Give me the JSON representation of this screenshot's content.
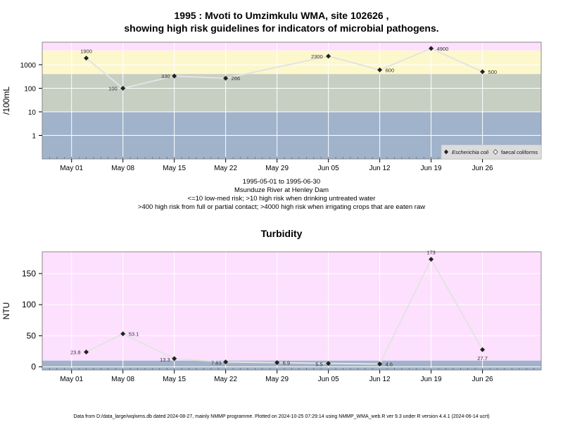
{
  "titles": {
    "main_line1": "1995 : Mvoti to Umzimkulu WMA, site 102626 ,",
    "main_line2": "showing high risk guidelines for indicators of microbial pathogens.",
    "turbidity": "Turbidity"
  },
  "caption": {
    "line1": "1995-05-01 to 1995-06-30",
    "line2": "Msunduze River at Henley Dam",
    "line3": "<=10 low-med risk; >10 high risk when drinking untreated water",
    "line4": ">400 high risk from full or partial contact; >4000 high risk when irrigating crops that are eaten raw"
  },
  "footer": "Data from D:/data_large/wq/wms.db dated 2024-08-27, mainly NMMP programme. Plotted on 2024-10-25 07:29:14 using NMMP_WMA_web.R ver 9.3 under R version 4.4.1 (2024-06-14 ucrt)",
  "colors": {
    "band_pink": "#fde0fd",
    "band_yellow": "#fdf8cc",
    "band_green": "#c6cfc2",
    "band_blue": "#a0b3cb",
    "grid": "#ffffff",
    "line": "#e3e3e3",
    "point": "#222222"
  },
  "chart_data": [
    {
      "type": "line",
      "title": "",
      "xlabel": "",
      "ylabel": "/100mL",
      "yscale": "log",
      "ylim": [
        0.1,
        9000
      ],
      "xlim": [
        "1995-04-27",
        "1995-07-04"
      ],
      "x_ticks": [
        "May 01",
        "May 08",
        "May 15",
        "May 22",
        "May 29",
        "Jun 05",
        "Jun 12",
        "Jun 19",
        "Jun 26"
      ],
      "y_ticks": [
        "1",
        "10",
        "100",
        "1000"
      ],
      "thresholds": [
        10,
        400,
        4000
      ],
      "grid": true,
      "legend": {
        "position": "bottom-right",
        "entries": [
          "Escherichia coli",
          "faecal coliforms"
        ]
      },
      "series": [
        {
          "name": "Escherichia coli",
          "points": [
            {
              "x": "1995-05-03",
              "y": 1900,
              "label": "1900"
            },
            {
              "x": "1995-05-08",
              "y": 100,
              "label": "100"
            },
            {
              "x": "1995-05-15",
              "y": 330,
              "label": "330"
            },
            {
              "x": "1995-05-22",
              "y": 266,
              "label": "266"
            },
            {
              "x": "1995-06-05",
              "y": 2300,
              "label": "2300"
            },
            {
              "x": "1995-06-12",
              "y": 600,
              "label": "600"
            },
            {
              "x": "1995-06-19",
              "y": 4900,
              "label": "4900"
            },
            {
              "x": "1995-06-26",
              "y": 500,
              "label": "500"
            }
          ]
        }
      ]
    },
    {
      "type": "line",
      "title": "Turbidity",
      "xlabel": "",
      "ylabel": "NTU",
      "yscale": "linear",
      "ylim": [
        -5,
        185
      ],
      "xlim": [
        "1995-04-27",
        "1995-07-04"
      ],
      "x_ticks": [
        "May 01",
        "May 08",
        "May 15",
        "May 22",
        "May 29",
        "Jun 05",
        "Jun 12",
        "Jun 19",
        "Jun 26"
      ],
      "y_ticks": [
        "0",
        "50",
        "100",
        "150"
      ],
      "thresholds": [
        10
      ],
      "grid": true,
      "series": [
        {
          "name": "",
          "points": [
            {
              "x": "1995-05-03",
              "y": 23.8,
              "label": "23.8"
            },
            {
              "x": "1995-05-08",
              "y": 53.1,
              "label": "53.1"
            },
            {
              "x": "1995-05-15",
              "y": 13.3,
              "label": "13.3"
            },
            {
              "x": "1995-05-22",
              "y": 7.83,
              "label": "7.83"
            },
            {
              "x": "1995-05-29",
              "y": 6.9,
              "label": "6.9"
            },
            {
              "x": "1995-06-05",
              "y": 5.5,
              "label": "5.5"
            },
            {
              "x": "1995-06-12",
              "y": 4.6,
              "label": "4.6"
            },
            {
              "x": "1995-06-19",
              "y": 173,
              "label": "173"
            },
            {
              "x": "1995-06-26",
              "y": 27.7,
              "label": "27.7"
            }
          ]
        }
      ]
    }
  ]
}
